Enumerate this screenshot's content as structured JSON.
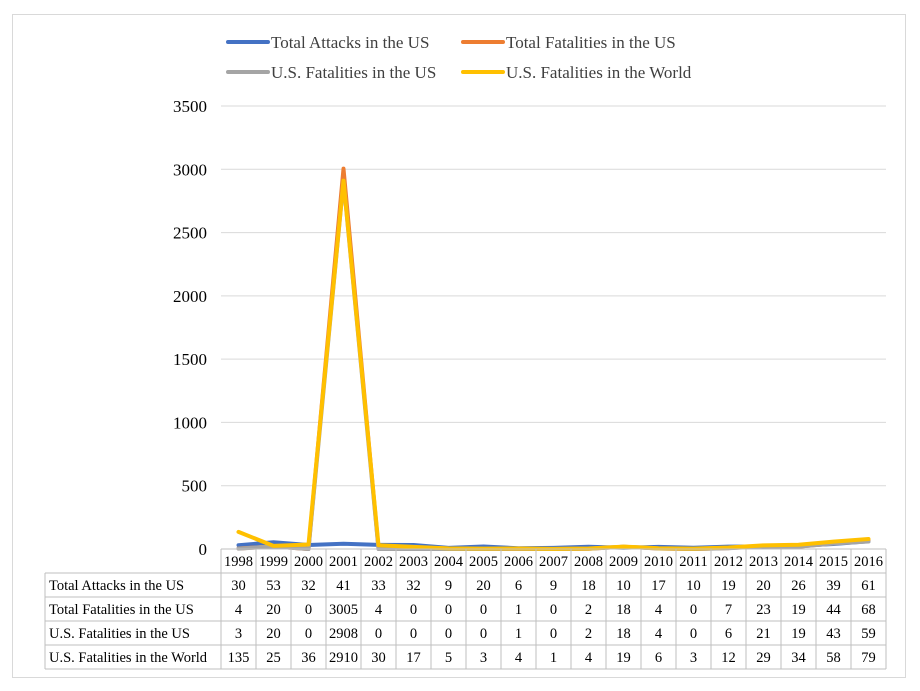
{
  "chart_data": {
    "type": "line",
    "title": "",
    "xlabel": "",
    "ylabel": "",
    "ylim": [
      0,
      3500
    ],
    "yticks": [
      0,
      500,
      1000,
      1500,
      2000,
      2500,
      3000,
      3500
    ],
    "grid": true,
    "legend": "top",
    "categories": [
      "1998",
      "1999",
      "2000",
      "2001",
      "2002",
      "2003",
      "2004",
      "2005",
      "2006",
      "2007",
      "2008",
      "2009",
      "2010",
      "2011",
      "2012",
      "2013",
      "2014",
      "2015",
      "2016"
    ],
    "series": [
      {
        "name": "Total Attacks in the US",
        "color": "#4472C4",
        "values": [
          30,
          53,
          32,
          41,
          33,
          32,
          9,
          20,
          6,
          9,
          18,
          10,
          17,
          10,
          19,
          20,
          26,
          39,
          61
        ]
      },
      {
        "name": "Total Fatalities in the US",
        "color": "#ED7D31",
        "values": [
          4,
          20,
          0,
          3005,
          4,
          0,
          0,
          0,
          1,
          0,
          2,
          18,
          4,
          0,
          7,
          23,
          19,
          44,
          68
        ]
      },
      {
        "name": "U.S. Fatalities in the US",
        "color": "#A5A5A5",
        "values": [
          3,
          20,
          0,
          2908,
          0,
          0,
          0,
          0,
          1,
          0,
          2,
          18,
          4,
          0,
          6,
          21,
          19,
          43,
          59
        ]
      },
      {
        "name": "U.S. Fatalities in the World",
        "color": "#FFC000",
        "values": [
          135,
          25,
          36,
          2910,
          30,
          17,
          5,
          3,
          4,
          1,
          4,
          19,
          6,
          3,
          12,
          29,
          34,
          58,
          79
        ]
      }
    ]
  }
}
